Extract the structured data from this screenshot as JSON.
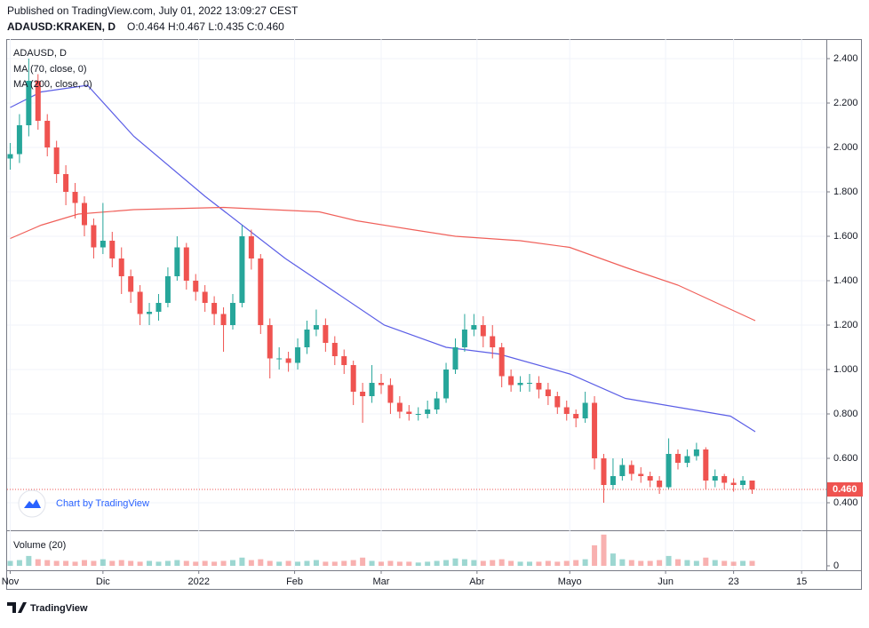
{
  "header": {
    "published": "Published on TradingView.com, July 01, 2022 13:09:27 CEST",
    "symbol": "ADAUSD:KRAKEN, D",
    "ohlc": "O:0.464 H:0.467 L:0.435 C:0.460"
  },
  "chart_data": {
    "type": "candlestick",
    "title": "ADAUSD, D",
    "x": [
      0,
      3,
      6,
      9,
      12,
      15,
      18,
      21,
      24,
      27,
      30,
      33,
      36,
      39,
      42,
      45,
      48,
      51,
      54,
      57,
      60,
      63,
      66,
      69,
      72,
      75,
      78,
      81,
      84,
      87,
      90,
      93,
      96,
      99,
      102,
      105,
      108,
      111,
      114,
      117,
      120,
      123,
      126,
      129,
      132,
      135,
      138,
      141,
      144,
      147,
      150,
      153,
      156,
      159,
      162,
      165,
      168,
      171,
      174,
      177,
      180,
      183,
      186,
      189,
      192,
      195,
      198,
      201,
      204,
      207,
      210,
      213,
      216,
      219,
      222,
      225,
      228,
      231,
      234,
      237,
      240
    ],
    "open": [
      1.95,
      1.97,
      2.1,
      2.3,
      2.12,
      2.0,
      1.88,
      1.8,
      1.75,
      1.65,
      1.55,
      1.58,
      1.5,
      1.42,
      1.35,
      1.25,
      1.26,
      1.3,
      1.42,
      1.55,
      1.4,
      1.35,
      1.3,
      1.25,
      1.2,
      1.3,
      1.6,
      1.5,
      1.2,
      1.05,
      1.05,
      1.03,
      1.1,
      1.18,
      1.2,
      1.12,
      1.06,
      1.02,
      0.9,
      0.88,
      0.94,
      0.93,
      0.85,
      0.81,
      0.8,
      0.8,
      0.82,
      0.87,
      1.0,
      1.1,
      1.18,
      1.2,
      1.15,
      1.1,
      0.97,
      0.93,
      0.94,
      0.94,
      0.91,
      0.88,
      0.83,
      0.8,
      0.78,
      0.85,
      0.6,
      0.48,
      0.52,
      0.57,
      0.53,
      0.52,
      0.5,
      0.47,
      0.62,
      0.58,
      0.61,
      0.64,
      0.5,
      0.52,
      0.49,
      0.48,
      0.5
    ],
    "high": [
      2.02,
      2.15,
      2.4,
      2.33,
      2.15,
      2.03,
      1.92,
      1.84,
      1.78,
      1.68,
      1.75,
      1.62,
      1.55,
      1.45,
      1.38,
      1.3,
      1.34,
      1.46,
      1.6,
      1.57,
      1.43,
      1.38,
      1.33,
      1.28,
      1.34,
      1.65,
      1.63,
      1.52,
      1.23,
      1.1,
      1.08,
      1.14,
      1.22,
      1.27,
      1.23,
      1.15,
      1.09,
      1.04,
      0.94,
      1.02,
      0.98,
      0.96,
      0.88,
      0.84,
      0.83,
      0.86,
      0.9,
      1.03,
      1.14,
      1.25,
      1.25,
      1.24,
      1.2,
      1.12,
      1.0,
      0.97,
      0.98,
      0.97,
      0.94,
      0.9,
      0.86,
      0.82,
      0.9,
      0.88,
      0.62,
      0.6,
      0.6,
      0.59,
      0.56,
      0.54,
      0.52,
      0.69,
      0.64,
      0.64,
      0.67,
      0.65,
      0.55,
      0.53,
      0.51,
      0.52,
      0.5
    ],
    "low": [
      1.9,
      1.93,
      2.05,
      2.08,
      1.96,
      1.84,
      1.74,
      1.68,
      1.6,
      1.5,
      1.52,
      1.46,
      1.34,
      1.3,
      1.2,
      1.2,
      1.22,
      1.28,
      1.4,
      1.36,
      1.31,
      1.26,
      1.2,
      1.08,
      1.18,
      1.28,
      1.45,
      1.16,
      0.96,
      1.0,
      0.99,
      1.0,
      1.07,
      1.15,
      1.08,
      1.02,
      0.98,
      0.84,
      0.76,
      0.85,
      0.89,
      0.8,
      0.78,
      0.77,
      0.77,
      0.78,
      0.8,
      0.85,
      0.98,
      1.08,
      1.15,
      1.1,
      1.05,
      0.92,
      0.9,
      0.9,
      0.9,
      0.87,
      0.84,
      0.8,
      0.77,
      0.74,
      0.76,
      0.55,
      0.4,
      0.46,
      0.5,
      0.5,
      0.49,
      0.47,
      0.44,
      0.46,
      0.55,
      0.56,
      0.59,
      0.46,
      0.47,
      0.46,
      0.45,
      0.46,
      0.44
    ],
    "close": [
      1.97,
      2.1,
      2.3,
      2.12,
      2.0,
      1.88,
      1.8,
      1.75,
      1.65,
      1.55,
      1.58,
      1.5,
      1.42,
      1.35,
      1.25,
      1.26,
      1.3,
      1.42,
      1.55,
      1.4,
      1.35,
      1.3,
      1.25,
      1.2,
      1.3,
      1.6,
      1.5,
      1.2,
      1.05,
      1.05,
      1.03,
      1.1,
      1.18,
      1.2,
      1.12,
      1.06,
      1.02,
      0.9,
      0.88,
      0.94,
      0.93,
      0.85,
      0.81,
      0.8,
      0.8,
      0.82,
      0.87,
      1.0,
      1.1,
      1.18,
      1.2,
      1.15,
      1.1,
      0.97,
      0.93,
      0.94,
      0.94,
      0.91,
      0.88,
      0.83,
      0.8,
      0.78,
      0.85,
      0.6,
      0.48,
      0.52,
      0.57,
      0.53,
      0.52,
      0.5,
      0.47,
      0.62,
      0.58,
      0.61,
      0.64,
      0.5,
      0.52,
      0.49,
      0.48,
      0.5,
      0.46
    ],
    "up_color": "#26a69a",
    "down_color": "#ef5350",
    "xlim": [
      -1,
      264
    ],
    "xticks": [
      {
        "value": 0,
        "label": "Nov"
      },
      {
        "value": 30,
        "label": "Dic"
      },
      {
        "value": 61,
        "label": "2022"
      },
      {
        "value": 92,
        "label": "Feb"
      },
      {
        "value": 120,
        "label": "Mar"
      },
      {
        "value": 151,
        "label": "Abr"
      },
      {
        "value": 181,
        "label": "Mayo"
      },
      {
        "value": 212,
        "label": "Jun"
      },
      {
        "value": 234,
        "label": "23"
      },
      {
        "value": 256,
        "label": "15"
      }
    ],
    "ylim": [
      0.276,
      2.488
    ],
    "yticks": [
      {
        "value": 0.4,
        "label": "0.400"
      },
      {
        "value": 0.6,
        "label": "0.600"
      },
      {
        "value": 0.8,
        "label": "0.800"
      },
      {
        "value": 1.0,
        "label": "1.000"
      },
      {
        "value": 1.2,
        "label": "1.200"
      },
      {
        "value": 1.4,
        "label": "1.400"
      },
      {
        "value": 1.6,
        "label": "1.600"
      },
      {
        "value": 1.8,
        "label": "1.800"
      },
      {
        "value": 2.0,
        "label": "2.000"
      },
      {
        "value": 2.2,
        "label": "2.200"
      },
      {
        "value": 2.4,
        "label": "2.400"
      }
    ],
    "grid": true,
    "last_price": {
      "value": 0.46,
      "label": "0.460"
    },
    "overlays": [
      {
        "name": "MA (70, close, 0)",
        "color": "#5b5ee6",
        "x": [
          0,
          10,
          25,
          40,
          63,
          89,
          121,
          141,
          158,
          181,
          199,
          216,
          233,
          241
        ],
        "values": [
          2.18,
          2.25,
          2.28,
          2.05,
          1.78,
          1.5,
          1.2,
          1.1,
          1.07,
          0.98,
          0.87,
          0.83,
          0.79,
          0.72
        ]
      },
      {
        "name": "MA (200, close, 0)",
        "color": "#f0605a",
        "x": [
          0,
          10,
          22,
          40,
          69,
          100,
          112,
          130,
          144,
          165,
          181,
          199,
          216,
          241
        ],
        "values": [
          1.59,
          1.65,
          1.7,
          1.72,
          1.73,
          1.71,
          1.67,
          1.63,
          1.6,
          1.58,
          1.55,
          1.46,
          1.38,
          1.22
        ]
      }
    ],
    "volume": {
      "name": "Volume (20)",
      "ylim": [
        0,
        40
      ],
      "yticks": [
        0
      ],
      "values": [
        6,
        7,
        12,
        8,
        7,
        6,
        6,
        5,
        7,
        6,
        8,
        6,
        7,
        6,
        5,
        6,
        5,
        6,
        7,
        6,
        5,
        6,
        5,
        6,
        7,
        10,
        7,
        8,
        6,
        5,
        6,
        5,
        6,
        7,
        5,
        5,
        6,
        7,
        10,
        6,
        5,
        6,
        5,
        5,
        4,
        5,
        6,
        7,
        9,
        8,
        7,
        6,
        7,
        8,
        6,
        5,
        5,
        5,
        6,
        5,
        6,
        7,
        8,
        25,
        38,
        15,
        8,
        7,
        6,
        6,
        7,
        12,
        8,
        7,
        6,
        10,
        7,
        6,
        5,
        6,
        6
      ]
    },
    "watermark": "Chart by TradingView"
  },
  "footer": {
    "brand": "TradingView"
  }
}
